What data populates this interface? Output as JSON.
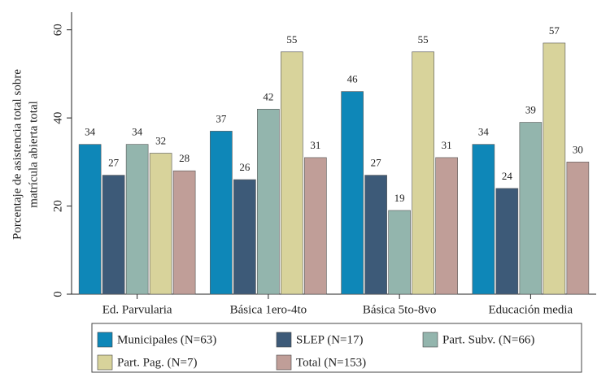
{
  "chart_data": {
    "type": "bar",
    "y_label": [
      "Porcentaje de asistencia total sobre",
      "matrícula abierta total"
    ],
    "categories": [
      "Ed. Parvularia",
      "Básica 1ero-4to",
      "Básica 5to-8vo",
      "Educación media"
    ],
    "series": [
      {
        "name": "Municipales (N=63)",
        "color": "#0e87b8",
        "values": [
          34,
          37,
          46,
          34
        ]
      },
      {
        "name": "SLEP (N=17)",
        "color": "#3d5a78",
        "values": [
          27,
          26,
          27,
          24
        ]
      },
      {
        "name": "Part. Subv. (N=66)",
        "color": "#93b5ad",
        "values": [
          34,
          42,
          19,
          39
        ]
      },
      {
        "name": "Part. Pag. (N=7)",
        "color": "#d8d39b",
        "values": [
          32,
          55,
          55,
          57
        ]
      },
      {
        "name": "Total (N=153)",
        "color": "#c09e98",
        "values": [
          28,
          31,
          31,
          30
        ]
      }
    ],
    "ylim": [
      0,
      64
    ],
    "yticks": [
      0,
      20,
      40,
      60
    ]
  }
}
